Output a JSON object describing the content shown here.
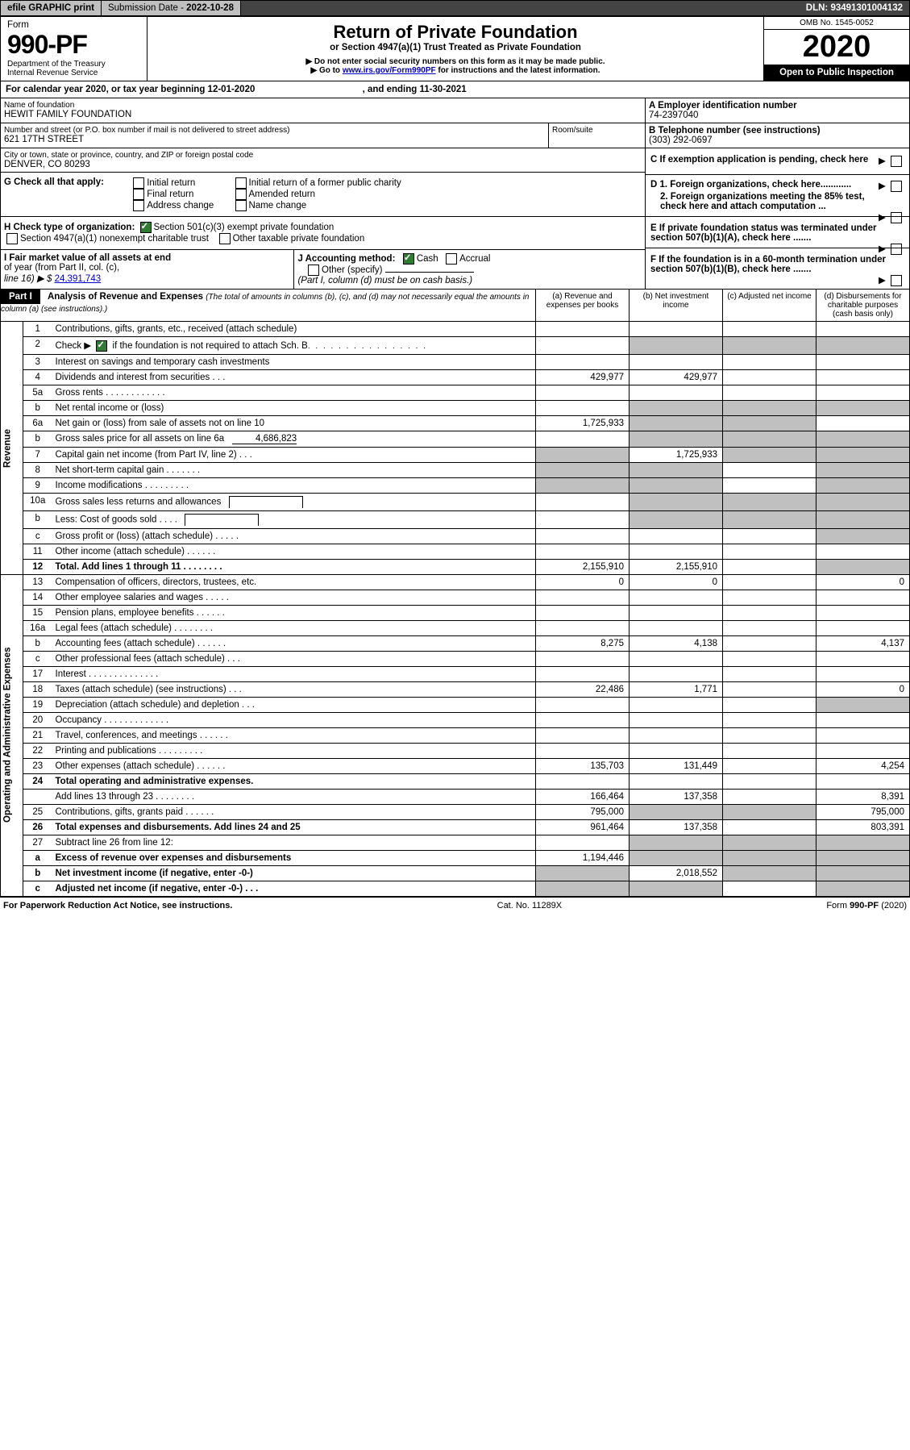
{
  "topbar": {
    "efile": "efile GRAPHIC print",
    "subdate_label": "Submission Date - ",
    "subdate": "2022-10-28",
    "dln_label": "DLN: ",
    "dln": "93491301004132"
  },
  "header": {
    "form_word": "Form",
    "form_num": "990-PF",
    "dept": "Department of the Treasury",
    "irs": "Internal Revenue Service",
    "title": "Return of Private Foundation",
    "subtitle": "or Section 4947(a)(1) Trust Treated as Private Foundation",
    "note1": "▶ Do not enter social security numbers on this form as it may be made public.",
    "note2_pre": "▶ Go to ",
    "note2_link": "www.irs.gov/Form990PF",
    "note2_post": " for instructions and the latest information.",
    "omb": "OMB No. 1545-0052",
    "year": "2020",
    "open": "Open to Public Inspection"
  },
  "cal": {
    "pre": "For calendar year 2020, or tax year beginning ",
    "begin": "12-01-2020",
    "mid": " , and ending ",
    "end": "11-30-2021"
  },
  "id": {
    "name_label": "Name of foundation",
    "name": "HEWIT FAMILY FOUNDATION",
    "addr_label": "Number and street (or P.O. box number if mail is not delivered to street address)",
    "room_label": "Room/suite",
    "addr": "621 17TH STREET",
    "city_label": "City or town, state or province, country, and ZIP or foreign postal code",
    "city": "DENVER, CO  80293",
    "A": "A Employer identification number",
    "A_val": "74-2397040",
    "B": "B Telephone number (see instructions)",
    "B_val": "(303) 292-0697",
    "C": "C If exemption application is pending, check here"
  },
  "G": {
    "label": "G Check all that apply:",
    "o1": "Initial return",
    "o2": "Final return",
    "o3": "Address change",
    "o4": "Initial return of a former public charity",
    "o5": "Amended return",
    "o6": "Name change"
  },
  "H": {
    "label": "H Check type of organization:",
    "o1": "Section 501(c)(3) exempt private foundation",
    "o2": "Section 4947(a)(1) nonexempt charitable trust",
    "o3": "Other taxable private foundation"
  },
  "I": {
    "label1": "I Fair market value of all assets at end",
    "label2": "of year (from Part II, col. (c),",
    "label3": "line 16) ▶ $",
    "val": "24,391,743"
  },
  "J": {
    "label": "J Accounting method:",
    "cash": "Cash",
    "accr": "Accrual",
    "other": "Other (specify)",
    "note": "(Part I, column (d) must be on cash basis.)"
  },
  "D": {
    "d1": "D 1. Foreign organizations, check here............",
    "d2": "2. Foreign organizations meeting the 85% test, check here and attach computation ..."
  },
  "E": "E  If private foundation status was terminated under section 507(b)(1)(A), check here .......",
  "F": "F  If the foundation is in a 60-month termination under section 507(b)(1)(B), check here .......",
  "part1": {
    "tag": "Part I",
    "title": "Analysis of Revenue and Expenses ",
    "title2": "(The total of amounts in columns (b), (c), and (d) may not necessarily equal the amounts in column (a) (see instructions).)",
    "colA": "(a)  Revenue and expenses per books",
    "colB": "(b)  Net investment income",
    "colC": "(c)  Adjusted net income",
    "colD": "(d)  Disbursements for charitable purposes (cash basis only)"
  },
  "sec": {
    "rev": "Revenue",
    "oae": "Operating and Administrative Expenses"
  },
  "rows": {
    "r1": {
      "n": "1",
      "t": "Contributions, gifts, grants, etc., received (attach schedule)"
    },
    "r2": {
      "n": "2",
      "t_pre": "Check ▶ ",
      "t_post": " if the foundation is not required to attach Sch. B",
      "dots": ".  .  .  .  .  .  .  .  .  .  .  .  .  .  .  .",
      "b_shade": true,
      "c_shade": true,
      "d_shade": true
    },
    "r3": {
      "n": "3",
      "t": "Interest on savings and temporary cash investments"
    },
    "r4": {
      "n": "4",
      "t": "Dividends and interest from securities   .   .   .",
      "a": "429,977",
      "b": "429,977"
    },
    "r5a": {
      "n": "5a",
      "t": "Gross rents   .   .   .   .   .   .   .   .   .   .   .   ."
    },
    "r5b": {
      "n": "b",
      "t": "Net rental income or (loss)",
      "b_shade": true,
      "c_shade": true,
      "d_shade": true
    },
    "r6a": {
      "n": "6a",
      "t": "Net gain or (loss) from sale of assets not on line 10",
      "a": "1,725,933",
      "b_shade": true,
      "c_shade": true
    },
    "r6b": {
      "n": "b",
      "t": "Gross sales price for all assets on line 6a",
      "inl": "4,686,823",
      "b_shade": true,
      "c_shade": true,
      "d_shade": true
    },
    "r7": {
      "n": "7",
      "t": "Capital gain net income (from Part IV, line 2)   .   .   .",
      "a_shade": true,
      "b": "1,725,933",
      "c_shade": true,
      "d_shade": true
    },
    "r8": {
      "n": "8",
      "t": "Net short-term capital gain   .   .   .   .   .   .   .",
      "a_shade": true,
      "b_shade": true,
      "d_shade": true
    },
    "r9": {
      "n": "9",
      "t": "Income modifications  .   .   .   .   .   .   .   .   .",
      "a_shade": true,
      "b_shade": true,
      "d_shade": true
    },
    "r10a": {
      "n": "10a",
      "t": "Gross sales less returns and allowances",
      "b_shade": true,
      "c_shade": true,
      "d_shade": true
    },
    "r10b": {
      "n": "b",
      "t": "Less: Cost of goods sold   .   .   .   .",
      "b_shade": true,
      "c_shade": true,
      "d_shade": true
    },
    "r10c": {
      "n": "c",
      "t": "Gross profit or (loss) (attach schedule)   .   .   .   .   .",
      "d_shade": true
    },
    "r11": {
      "n": "11",
      "t": "Other income (attach schedule)   .   .   .   .   .   ."
    },
    "r12": {
      "n": "12",
      "t": "Total. Add lines 1 through 11   .   .   .   .   .   .   .   .",
      "bold": true,
      "a": "2,155,910",
      "b": "2,155,910",
      "d_shade": true
    },
    "r13": {
      "n": "13",
      "t": "Compensation of officers, directors, trustees, etc.",
      "a": "0",
      "b": "0",
      "d": "0"
    },
    "r14": {
      "n": "14",
      "t": "Other employee salaries and wages   .   .   .   .   ."
    },
    "r15": {
      "n": "15",
      "t": "Pension plans, employee benefits  .   .   .   .   .   ."
    },
    "r16a": {
      "n": "16a",
      "t": "Legal fees (attach schedule)  .   .   .   .   .   .   .   ."
    },
    "r16b": {
      "n": "b",
      "t": "Accounting fees (attach schedule)  .   .   .   .   .   .",
      "a": "8,275",
      "b": "4,138",
      "d": "4,137"
    },
    "r16c": {
      "n": "c",
      "t": "Other professional fees (attach schedule)   .   .   ."
    },
    "r17": {
      "n": "17",
      "t": "Interest  .   .   .   .   .   .   .   .   .   .   .   .   .   ."
    },
    "r18": {
      "n": "18",
      "t": "Taxes (attach schedule) (see instructions)   .   .   .",
      "a": "22,486",
      "b": "1,771",
      "d": "0"
    },
    "r19": {
      "n": "19",
      "t": "Depreciation (attach schedule) and depletion   .   .   .",
      "d_shade": true
    },
    "r20": {
      "n": "20",
      "t": "Occupancy  .   .   .   .   .   .   .   .   .   .   .   .   ."
    },
    "r21": {
      "n": "21",
      "t": "Travel, conferences, and meetings  .   .   .   .   .   ."
    },
    "r22": {
      "n": "22",
      "t": "Printing and publications  .   .   .   .   .   .   .   .   ."
    },
    "r23": {
      "n": "23",
      "t": "Other expenses (attach schedule)  .   .   .   .   .   .",
      "a": "135,703",
      "b": "131,449",
      "d": "4,254"
    },
    "r24": {
      "n": "24",
      "t": "Total operating and administrative expenses.",
      "bold": true
    },
    "r24b": {
      "n": "",
      "t": "Add lines 13 through 23   .   .   .   .   .   .   .   .",
      "a": "166,464",
      "b": "137,358",
      "d": "8,391"
    },
    "r25": {
      "n": "25",
      "t": "Contributions, gifts, grants paid   .   .   .   .   .   .",
      "a": "795,000",
      "b_shade": true,
      "c_shade": true,
      "d": "795,000"
    },
    "r26": {
      "n": "26",
      "t": "Total expenses and disbursements. Add lines 24 and 25",
      "bold": true,
      "a": "961,464",
      "b": "137,358",
      "d": "803,391"
    },
    "r27": {
      "n": "27",
      "t": "Subtract line 26 from line 12:",
      "b_shade": true,
      "c_shade": true,
      "d_shade": true
    },
    "r27a": {
      "n": "a",
      "t": "Excess of revenue over expenses and disbursements",
      "bold": true,
      "a": "1,194,446",
      "b_shade": true,
      "c_shade": true,
      "d_shade": true
    },
    "r27b": {
      "n": "b",
      "t": "Net investment income (if negative, enter -0-)",
      "bold": true,
      "a_shade": true,
      "b": "2,018,552",
      "c_shade": true,
      "d_shade": true
    },
    "r27c": {
      "n": "c",
      "t": "Adjusted net income (if negative, enter -0-)   .   .   .",
      "bold": true,
      "a_shade": true,
      "b_shade": true,
      "d_shade": true
    }
  },
  "footer": {
    "l": "For Paperwork Reduction Act Notice, see instructions.",
    "m": "Cat. No. 11289X",
    "r": "Form 990-PF (2020)"
  }
}
